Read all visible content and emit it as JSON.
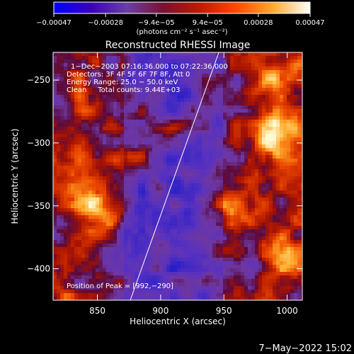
{
  "chart_data": {
    "type": "heatmap",
    "title": "Reconstructed RHESSI Image",
    "xlabel": "Heliocentric X (arcsec)",
    "ylabel": "Heliocentric Y (arcsec)",
    "xlim": [
      815,
      1012
    ],
    "ylim": [
      -425,
      -228
    ],
    "x_ticks": [
      850,
      900,
      950,
      1000
    ],
    "y_ticks": [
      -250,
      -300,
      -350,
      -400
    ],
    "x_tick_labels": [
      "850",
      "900",
      "950",
      "1000"
    ],
    "y_tick_labels": [
      "−250",
      "−300",
      "−350",
      "−400"
    ],
    "colorbar": {
      "range": [
        -0.00047,
        0.00047
      ],
      "ticks": [
        -0.00047,
        -0.00028,
        -9.4e-05,
        9.4e-05,
        0.00028,
        0.00047
      ],
      "tick_labels": [
        "−0.00047",
        "−0.00028",
        "−9.4e−05",
        "9.4e−05",
        "0.00028",
        "0.00047"
      ],
      "unit_label": "(photons cm⁻² s⁻¹ asec⁻²)",
      "colors": [
        "#0000ff",
        "#3a00b8",
        "#6a3fa5",
        "#7a1030",
        "#c01a00",
        "#ff4a00",
        "#ffaa30",
        "#ffffff"
      ]
    },
    "annotations": {
      "time_range": "1−Dec−2003 07:16:36.000 to 07:22:36.000",
      "detectors": "Detectors: 3F 4F 5F 6F 7F 8F, Att 0",
      "energy_range": "Energy Range: 25.0 − 50.0 keV",
      "method_counts": "Clean     Total counts: 9.44E+03",
      "peak": "Position of Peak = [992,−290]"
    },
    "limb_line": [
      [
        876,
        -425
      ],
      [
        946,
        -228
      ]
    ],
    "image_layout": {
      "blue_band_x": [
        870,
        950
      ],
      "bright_regions": [
        {
          "x": 850,
          "y": -355,
          "level": 0.8
        },
        {
          "x": 835,
          "y": -320,
          "level": 0.6
        },
        {
          "x": 990,
          "y": -290,
          "level": 1.0
        },
        {
          "x": 990,
          "y": -250,
          "level": 0.7
        },
        {
          "x": 955,
          "y": -345,
          "level": 0.6
        },
        {
          "x": 1000,
          "y": -395,
          "level": 0.5
        },
        {
          "x": 880,
          "y": -305,
          "level": 0.5
        },
        {
          "x": 905,
          "y": -295,
          "level": 0.45
        }
      ]
    }
  },
  "footer": {
    "timestamp": "7−May−2022 15:02"
  }
}
